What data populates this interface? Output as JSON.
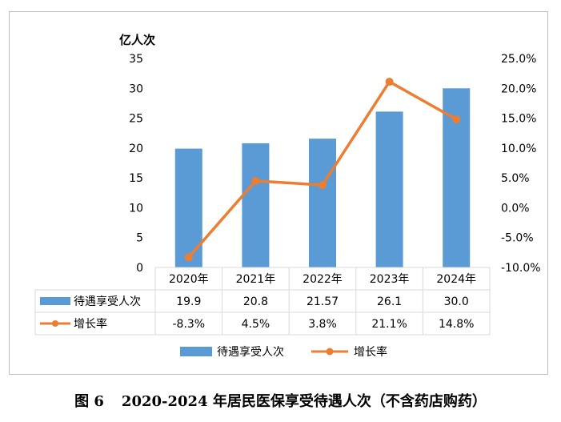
{
  "caption": {
    "figure_no": "图 6",
    "title": "2020-2024 年居民医保享受待遇人次（不含药店购药）"
  },
  "colors": {
    "bar": "#5b9bd5",
    "line": "#ed7d31",
    "axis": "#d9d9d9",
    "text": "#000000"
  },
  "chart_data": {
    "type": "bar",
    "categories": [
      "2020年",
      "2021年",
      "2022年",
      "2023年",
      "2024年"
    ],
    "y_unit_label": "亿人次",
    "ylim": [
      0,
      35
    ],
    "y_ticks": [
      "0",
      "5",
      "10",
      "15",
      "20",
      "25",
      "30",
      "35"
    ],
    "y2lim": [
      -10,
      25
    ],
    "y2_ticks": [
      "-10.0%",
      "-5.0%",
      "0.0%",
      "5.0%",
      "10.0%",
      "15.0%",
      "20.0%",
      "25.0%"
    ],
    "grid": false,
    "legend_position": "bottom",
    "series": [
      {
        "name": "待遇享受人次",
        "type": "bar",
        "axis": "left",
        "values": [
          19.9,
          20.8,
          21.57,
          26.1,
          30.0
        ],
        "labels": [
          "19.9",
          "20.8",
          "21.57",
          "26.1",
          "30.0"
        ]
      },
      {
        "name": "增长率",
        "type": "line",
        "axis": "right",
        "values": [
          -8.3,
          4.5,
          3.8,
          21.1,
          14.8
        ],
        "labels": [
          "-8.3%",
          "4.5%",
          "3.8%",
          "21.1%",
          "14.8%"
        ]
      }
    ]
  }
}
